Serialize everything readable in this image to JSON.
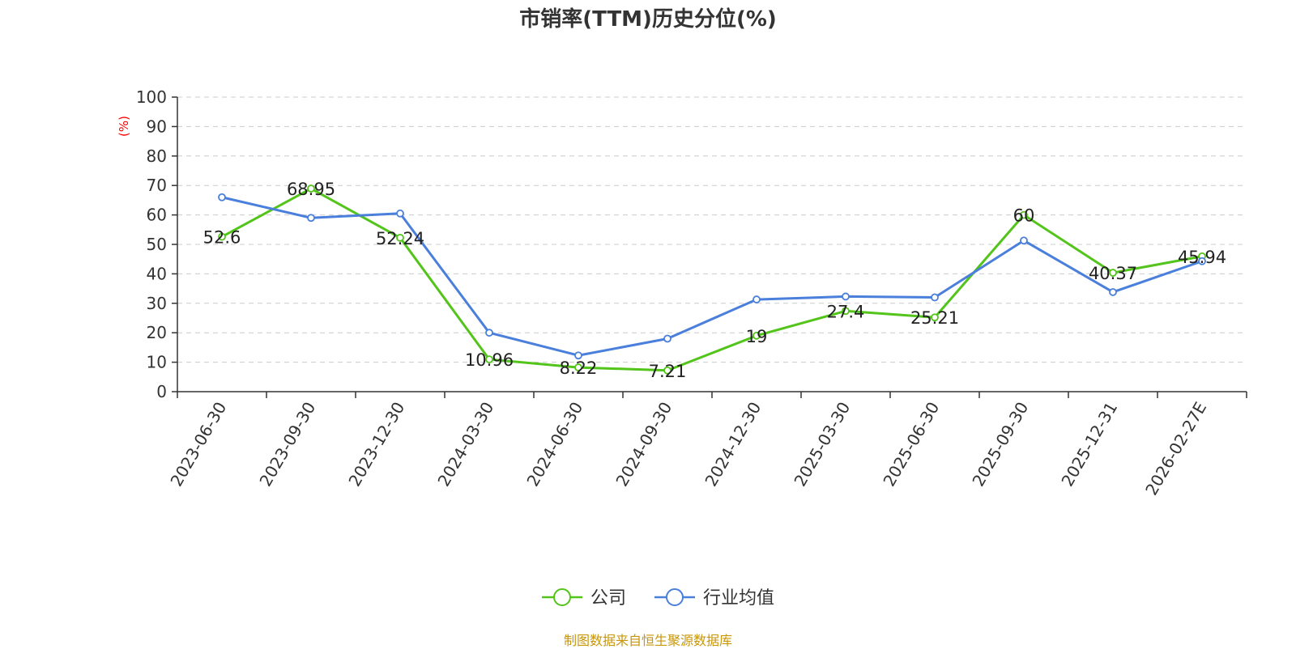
{
  "chart_data": {
    "type": "line",
    "title": "市销率(TTM)历史分位(%)",
    "ylabel": "(%)",
    "ylim": [
      0,
      100
    ],
    "yticks": [
      0,
      10,
      20,
      30,
      40,
      50,
      60,
      70,
      80,
      90,
      100
    ],
    "grid": true,
    "legend_position": "bottom-center",
    "categories": [
      "2023-06-30",
      "2023-09-30",
      "2023-12-30",
      "2024-03-30",
      "2024-06-30",
      "2024-09-30",
      "2024-12-30",
      "2025-03-30",
      "2025-06-30",
      "2025-09-30",
      "2025-12-31",
      "2026-02-27E"
    ],
    "series": [
      {
        "name": "公司",
        "color": "#52c41a",
        "values": [
          52.6,
          68.95,
          52.24,
          10.96,
          8.22,
          7.21,
          19,
          27.4,
          25.21,
          60,
          40.37,
          45.94
        ],
        "labels": [
          "52.6",
          "68.95",
          "52.24",
          "10.96",
          "8.22",
          "7.21",
          "19",
          "27.4",
          "25.21",
          "60",
          "40.37",
          "45.94"
        ]
      },
      {
        "name": "行业均值",
        "color": "#4a7fdb",
        "values": [
          66,
          59,
          60.5,
          20,
          12.3,
          18,
          31.3,
          32.3,
          32,
          51.3,
          33.8,
          44.3
        ]
      }
    ],
    "source": "制图数据来自恒生聚源数据库"
  }
}
